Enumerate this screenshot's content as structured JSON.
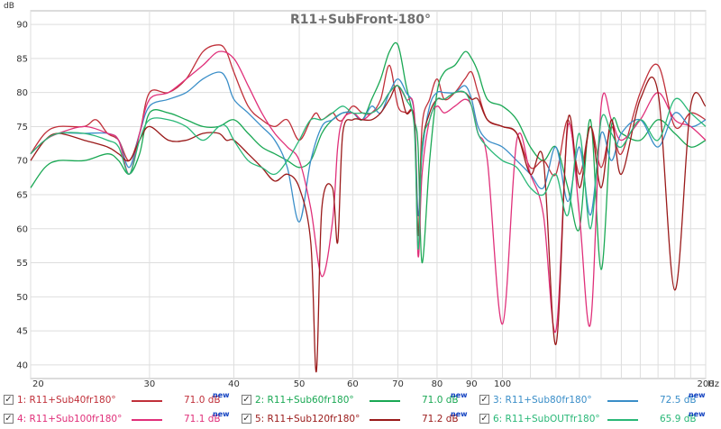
{
  "chart_data": {
    "type": "line",
    "title": "R11+SubFront-180°",
    "ylabel": "dB",
    "xunit": "Hz",
    "xscale": "log",
    "xlim": [
      20,
      200
    ],
    "ylim": [
      38,
      92
    ],
    "grid": true,
    "xticks": [
      20,
      30,
      40,
      50,
      60,
      70,
      80,
      90,
      100,
      200
    ],
    "yticks": [
      40,
      45,
      50,
      55,
      60,
      65,
      70,
      75,
      80,
      85,
      90
    ],
    "series": [
      {
        "name": "1: R11+Sub40fr180°",
        "color": "#c0303a",
        "value": "71.0 dB",
        "x": [
          20,
          21,
          22,
          24,
          25,
          26,
          27,
          28,
          29,
          30,
          32,
          34,
          36,
          38,
          39,
          40,
          42,
          44,
          46,
          48,
          50,
          52,
          53,
          54,
          56,
          57,
          58,
          60,
          62,
          64,
          66,
          68,
          70,
          72,
          74,
          75,
          76,
          78,
          80,
          82,
          85,
          88,
          90,
          92,
          95,
          100,
          105,
          110,
          115,
          120,
          125,
          130,
          135,
          140,
          145,
          150,
          160,
          170,
          180,
          190,
          200
        ],
        "y": [
          71,
          74,
          75,
          75,
          76,
          74,
          73,
          70,
          74,
          80,
          80,
          82,
          86,
          87,
          86,
          83,
          78,
          76,
          75,
          76,
          73,
          76,
          77,
          76,
          77,
          76,
          76,
          78,
          77,
          77,
          79,
          84,
          78,
          77,
          76,
          59,
          75,
          79,
          82,
          79,
          80,
          82,
          83,
          80,
          76,
          75,
          74,
          69,
          70,
          68,
          76,
          68,
          75,
          69,
          75,
          71,
          80,
          84,
          75,
          77,
          76
        ]
      },
      {
        "name": "2: R11+Sub60fr180°",
        "color": "#1aa854",
        "value": "71.0 dB",
        "x": [
          20,
          21,
          22,
          24,
          26,
          27,
          28,
          29,
          30,
          32,
          34,
          36,
          38,
          40,
          42,
          44,
          46,
          48,
          50,
          52,
          54,
          56,
          58,
          60,
          62,
          64,
          66,
          68,
          70,
          72,
          74,
          75,
          76,
          78,
          80,
          82,
          85,
          88,
          90,
          92,
          95,
          100,
          105,
          110,
          115,
          120,
          125,
          130,
          135,
          140,
          145,
          150,
          160,
          170,
          180,
          190,
          200
        ],
        "y": [
          66,
          69,
          70,
          70,
          71,
          70,
          68,
          71,
          77,
          77,
          76,
          75,
          75,
          76,
          74,
          72,
          71,
          70,
          69,
          70,
          74,
          76,
          77,
          77,
          76,
          79,
          82,
          86,
          87,
          81,
          76,
          72,
          55,
          70,
          80,
          83,
          84,
          86,
          85,
          83,
          79,
          78,
          76,
          72,
          70,
          72,
          66,
          60,
          76,
          54,
          75,
          74,
          73,
          76,
          74,
          72,
          73
        ]
      },
      {
        "name": "3: R11+Sub80fr180°",
        "color": "#3a8ec8",
        "value": "72.5 dB",
        "x": [
          20,
          21,
          22,
          24,
          26,
          27,
          28,
          29,
          30,
          32,
          34,
          36,
          38,
          39,
          40,
          42,
          44,
          46,
          48,
          50,
          52,
          54,
          56,
          58,
          60,
          62,
          64,
          66,
          68,
          70,
          72,
          74,
          75,
          76,
          78,
          80,
          82,
          85,
          88,
          90,
          92,
          95,
          100,
          105,
          110,
          115,
          120,
          125,
          130,
          135,
          140,
          145,
          150,
          160,
          170,
          180,
          190,
          200
        ],
        "y": [
          71,
          73,
          74,
          74,
          74,
          73,
          69,
          74,
          78,
          79,
          80,
          82,
          83,
          82,
          79,
          77,
          75,
          73,
          69,
          61,
          70,
          75,
          76,
          77,
          77,
          76,
          78,
          77,
          80,
          82,
          80,
          77,
          62,
          71,
          78,
          80,
          80,
          80,
          81,
          79,
          75,
          73,
          72,
          70,
          68,
          66,
          72,
          64,
          72,
          62,
          74,
          70,
          74,
          76,
          72,
          77,
          75,
          76
        ]
      },
      {
        "name": "4: R11+Sub100fr180°",
        "color": "#e0307a",
        "value": "71.1 dB",
        "x": [
          20,
          21,
          22,
          24,
          26,
          27,
          28,
          29,
          30,
          32,
          34,
          36,
          38,
          40,
          42,
          44,
          46,
          48,
          50,
          52,
          54,
          56,
          57,
          58,
          60,
          62,
          64,
          66,
          68,
          70,
          72,
          74,
          75,
          76,
          78,
          80,
          82,
          85,
          88,
          90,
          92,
          95,
          100,
          105,
          110,
          115,
          120,
          125,
          130,
          135,
          140,
          145,
          150,
          160,
          170,
          180,
          190,
          200
        ],
        "y": [
          71,
          73,
          74,
          75,
          74,
          73,
          68,
          74,
          79,
          80,
          82,
          84,
          86,
          85,
          81,
          77,
          74,
          72,
          70,
          63,
          53,
          61,
          72,
          76,
          77,
          76,
          77,
          78,
          80,
          81,
          79,
          77,
          56,
          68,
          76,
          78,
          77,
          78,
          79,
          78,
          74,
          70,
          46,
          73,
          68,
          62,
          45,
          75,
          62,
          46,
          78,
          76,
          73,
          76,
          80,
          76,
          75,
          73
        ]
      },
      {
        "name": "5: R11+Sub120fr180°",
        "color": "#9a1a1a",
        "value": "71.2 dB",
        "x": [
          20,
          21,
          22,
          24,
          26,
          27,
          28,
          29,
          30,
          32,
          34,
          36,
          38,
          39,
          40,
          42,
          44,
          46,
          48,
          50,
          52,
          53,
          54,
          56,
          57,
          58,
          60,
          62,
          64,
          66,
          68,
          70,
          72,
          74,
          75,
          76,
          78,
          80,
          82,
          85,
          88,
          90,
          92,
          95,
          100,
          105,
          110,
          115,
          120,
          125,
          130,
          135,
          140,
          145,
          150,
          160,
          170,
          180,
          190,
          200
        ],
        "y": [
          70,
          73,
          74,
          73,
          72,
          71,
          70,
          73,
          75,
          73,
          73,
          74,
          74,
          73,
          73,
          71,
          69,
          67,
          68,
          66,
          58,
          39,
          63,
          66,
          58,
          74,
          76,
          76,
          76,
          77,
          79,
          81,
          77,
          76,
          59,
          72,
          77,
          79,
          79,
          80,
          80,
          79,
          79,
          76,
          75,
          74,
          68,
          70,
          43,
          76,
          66,
          75,
          66,
          76,
          68,
          79,
          80,
          51,
          78,
          78
        ]
      },
      {
        "name": "6: R11+SubOUTfr180°",
        "color": "#2ab878",
        "value": "65.9 dB",
        "x": [
          20,
          21,
          22,
          24,
          26,
          27,
          28,
          29,
          30,
          32,
          34,
          36,
          38,
          39,
          40,
          42,
          44,
          46,
          48,
          50,
          52,
          54,
          56,
          58,
          60,
          62,
          64,
          66,
          68,
          70,
          72,
          74,
          75,
          76,
          78,
          80,
          82,
          85,
          88,
          90,
          92,
          95,
          100,
          105,
          110,
          115,
          120,
          125,
          130,
          135,
          140,
          145,
          150,
          160,
          170,
          180,
          190,
          200
        ],
        "y": [
          71,
          73,
          74,
          74,
          73,
          72,
          68,
          73,
          76,
          76,
          75,
          73,
          75,
          75,
          73,
          70,
          69,
          68,
          70,
          73,
          76,
          76,
          77,
          78,
          77,
          77,
          77,
          78,
          80,
          81,
          79,
          75,
          57,
          72,
          76,
          79,
          79,
          80,
          80,
          78,
          74,
          72,
          70,
          69,
          66,
          65,
          68,
          62,
          74,
          60,
          76,
          74,
          72,
          76,
          73,
          79,
          77,
          75
        ]
      }
    ]
  },
  "legend_new": "new"
}
